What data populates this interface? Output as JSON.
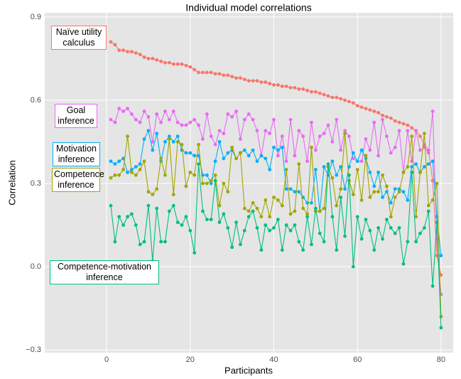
{
  "chart_data": {
    "type": "line",
    "title": "Individual model correlations",
    "x_label": "Participants",
    "y_label": "Correlation",
    "xlim": [
      -14.8,
      82.9
    ],
    "ylim": [
      -0.31,
      0.915
    ],
    "xticks": [
      0,
      20,
      40,
      60,
      80
    ],
    "yticks": [
      {
        "value": -0.3,
        "label": "−0.3"
      },
      {
        "value": 0,
        "label": "0.0"
      },
      0.3,
      0.6,
      0.9
    ],
    "grid": true,
    "x": [
      1,
      2,
      3,
      4,
      5,
      6,
      7,
      8,
      9,
      10,
      11,
      12,
      13,
      14,
      15,
      16,
      17,
      18,
      19,
      20,
      21,
      22,
      23,
      24,
      25,
      26,
      27,
      28,
      29,
      30,
      31,
      32,
      33,
      34,
      35,
      36,
      37,
      38,
      39,
      40,
      41,
      42,
      43,
      44,
      45,
      46,
      47,
      48,
      49,
      50,
      51,
      52,
      53,
      54,
      55,
      56,
      57,
      58,
      59,
      60,
      61,
      62,
      63,
      64,
      65,
      66,
      67,
      68,
      69,
      70,
      71,
      72,
      73,
      74,
      75,
      76,
      77,
      78,
      79,
      80
    ],
    "series": [
      {
        "name": "Naïve utility calculus",
        "color": "#F8766D",
        "values": [
          0.81,
          0.8,
          0.78,
          0.78,
          0.775,
          0.775,
          0.77,
          0.765,
          0.755,
          0.75,
          0.75,
          0.745,
          0.74,
          0.735,
          0.735,
          0.73,
          0.73,
          0.73,
          0.725,
          0.72,
          0.71,
          0.7,
          0.7,
          0.7,
          0.7,
          0.695,
          0.695,
          0.69,
          0.69,
          0.685,
          0.68,
          0.68,
          0.675,
          0.67,
          0.67,
          0.67,
          0.665,
          0.665,
          0.66,
          0.655,
          0.655,
          0.65,
          0.65,
          0.645,
          0.645,
          0.64,
          0.64,
          0.635,
          0.63,
          0.63,
          0.625,
          0.62,
          0.615,
          0.61,
          0.61,
          0.605,
          0.6,
          0.595,
          0.59,
          0.58,
          0.575,
          0.57,
          0.565,
          0.56,
          0.555,
          0.545,
          0.54,
          0.535,
          0.525,
          0.52,
          0.515,
          0.51,
          0.5,
          0.49,
          0.47,
          0.44,
          0.42,
          0.31,
          0.04,
          -0.03
        ]
      },
      {
        "name": "Goal inference",
        "color": "#E76BF3",
        "values": [
          0.53,
          0.52,
          0.57,
          0.56,
          0.57,
          0.55,
          0.53,
          0.52,
          0.56,
          0.54,
          0.45,
          0.55,
          0.52,
          0.56,
          0.53,
          0.56,
          0.52,
          0.51,
          0.51,
          0.52,
          0.53,
          0.51,
          0.46,
          0.55,
          0.47,
          0.44,
          0.49,
          0.48,
          0.55,
          0.54,
          0.56,
          0.46,
          0.53,
          0.55,
          0.53,
          0.49,
          0.4,
          0.49,
          0.48,
          0.53,
          0.4,
          0.47,
          0.38,
          0.53,
          0.4,
          0.49,
          0.47,
          0.38,
          0.52,
          0.42,
          0.47,
          0.48,
          0.51,
          0.45,
          0.53,
          0.42,
          0.49,
          0.47,
          0.39,
          0.38,
          0.38,
          0.46,
          0.42,
          0.52,
          0.4,
          0.53,
          0.47,
          0.41,
          0.43,
          0.49,
          0.34,
          0.49,
          0.38,
          0.49,
          0.42,
          0.43,
          0.41,
          0.56,
          0.1,
          -0.1
        ]
      },
      {
        "name": "Motivation inference",
        "color": "#00B0F6",
        "values": [
          0.38,
          0.37,
          0.38,
          0.39,
          0.34,
          0.35,
          0.36,
          0.37,
          0.46,
          0.49,
          0.42,
          0.48,
          0.38,
          0.45,
          0.47,
          0.45,
          0.47,
          0.42,
          0.41,
          0.41,
          0.4,
          0.4,
          0.33,
          0.33,
          0.3,
          0.38,
          0.45,
          0.39,
          0.41,
          0.42,
          0.39,
          0.41,
          0.42,
          0.4,
          0.42,
          0.38,
          0.4,
          0.39,
          0.35,
          0.43,
          0.42,
          0.43,
          0.28,
          0.28,
          0.27,
          0.27,
          0.25,
          0.23,
          0.23,
          0.35,
          0.2,
          0.36,
          0.33,
          0.38,
          0.33,
          0.36,
          0.28,
          0.36,
          0.41,
          0.38,
          0.42,
          0.39,
          0.34,
          0.29,
          0.34,
          0.25,
          0.27,
          0.23,
          0.28,
          0.28,
          0.27,
          0.24,
          0.36,
          0.37,
          0.34,
          0.36,
          0.37,
          0.38,
          0.18,
          0.04
        ]
      },
      {
        "name": "Competence inference",
        "color": "#A3A500",
        "values": [
          0.32,
          0.33,
          0.33,
          0.35,
          0.47,
          0.34,
          0.33,
          0.35,
          0.38,
          0.27,
          0.26,
          0.28,
          0.39,
          0.33,
          0.46,
          0.26,
          0.45,
          0.44,
          0.29,
          0.34,
          0.33,
          0.44,
          0.3,
          0.3,
          0.31,
          0.33,
          0.22,
          0.3,
          0.27,
          0.43,
          0.39,
          0.41,
          0.21,
          0.2,
          0.23,
          0.21,
          0.18,
          0.24,
          0.18,
          0.25,
          0.24,
          0.22,
          0.35,
          0.19,
          0.2,
          0.37,
          0.21,
          0.19,
          0.43,
          0.2,
          0.2,
          0.21,
          0.36,
          0.32,
          0.22,
          0.28,
          0.48,
          0.31,
          0.26,
          0.35,
          0.24,
          0.4,
          0.25,
          0.27,
          0.27,
          0.33,
          0.29,
          0.18,
          0.25,
          0.27,
          0.34,
          0.36,
          0.47,
          0.18,
          0.34,
          0.48,
          0.22,
          0.24,
          0.3,
          -0.18
        ]
      },
      {
        "name": "Competence-motivation inference",
        "color": "#00BF7D",
        "values": [
          0.22,
          0.09,
          0.18,
          0.15,
          0.18,
          0.19,
          0.15,
          0.08,
          0.09,
          0.22,
          0.02,
          0.21,
          0.09,
          0.09,
          0.2,
          0.22,
          0.16,
          0.15,
          0.18,
          0.13,
          0.05,
          0.37,
          0.2,
          0.17,
          0.17,
          0.31,
          0.16,
          0.19,
          0.14,
          0.07,
          0.16,
          0.08,
          0.13,
          0.18,
          0.2,
          0.14,
          0.06,
          0.15,
          0.13,
          0.14,
          0.17,
          0.06,
          0.15,
          0.13,
          0.15,
          0.09,
          0.06,
          0.18,
          0.08,
          0.21,
          0.12,
          0.09,
          0.37,
          0.18,
          0.06,
          0.25,
          0.11,
          0.33,
          0,
          0.18,
          0.1,
          0.17,
          0.13,
          0.06,
          0.14,
          0.1,
          0.17,
          0.14,
          0.12,
          0.14,
          0.01,
          0.09,
          0.34,
          0.09,
          0.12,
          0.14,
          0.2,
          -0.07,
          0.16,
          -0.22
        ]
      }
    ]
  }
}
